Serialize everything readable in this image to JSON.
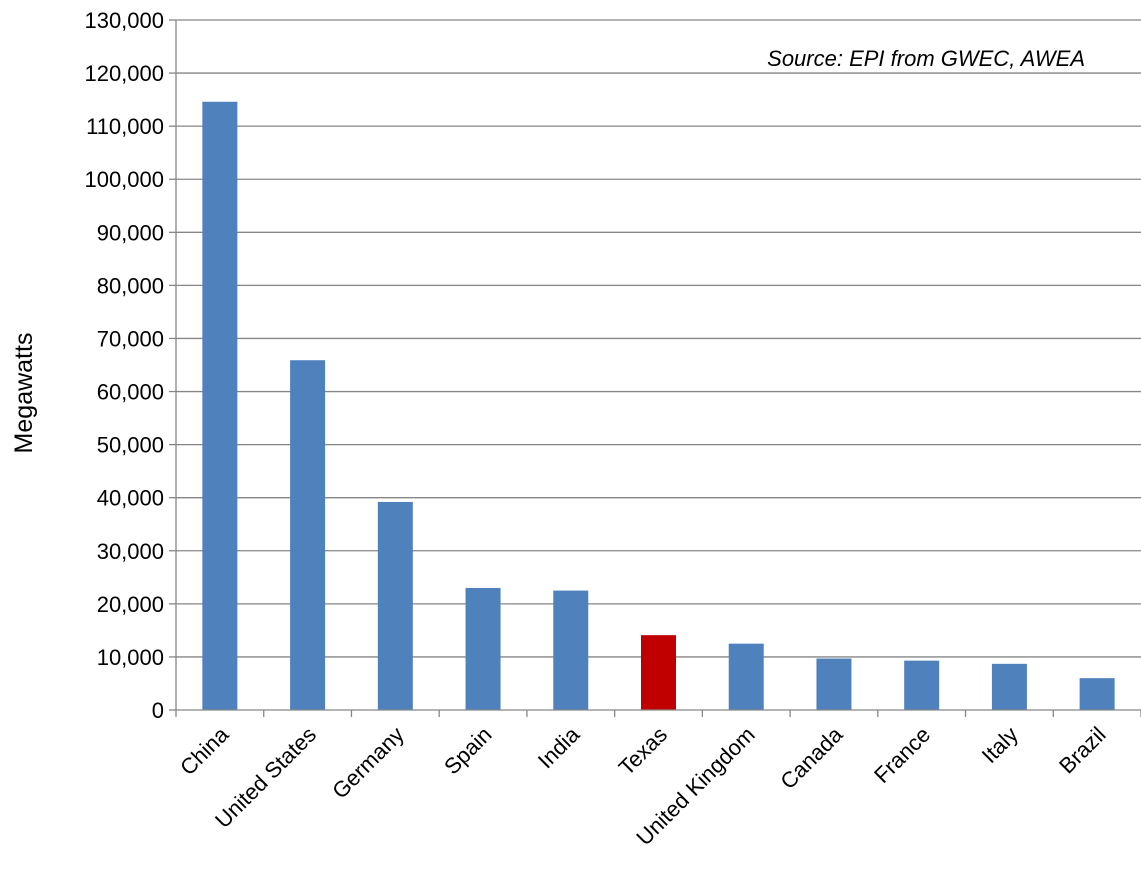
{
  "chart_data": {
    "type": "bar",
    "title": "",
    "xlabel": "",
    "ylabel": "Megawatts",
    "annotation": "Source: EPI from GWEC, AWEA",
    "categories": [
      "China",
      "United States",
      "Germany",
      "Spain",
      "India",
      "Texas",
      "United Kingdom",
      "Canada",
      "France",
      "Italy",
      "Brazil"
    ],
    "values": [
      114600,
      65900,
      39200,
      23000,
      22500,
      14100,
      12500,
      9700,
      9300,
      8700,
      6000
    ],
    "highlight_category": "Texas",
    "ylim": [
      0,
      130000
    ],
    "yticks": [
      0,
      10000,
      20000,
      30000,
      40000,
      50000,
      60000,
      70000,
      80000,
      90000,
      100000,
      110000,
      120000,
      130000
    ],
    "ytick_labels": [
      "0",
      "10,000",
      "20,000",
      "30,000",
      "40,000",
      "50,000",
      "60,000",
      "70,000",
      "80,000",
      "90,000",
      "100,000",
      "110,000",
      "120,000",
      "130,000"
    ],
    "grid": true,
    "legend": "none",
    "colors": {
      "bar": "#4F81BD",
      "highlight": "#C00000",
      "grid": "#868686",
      "axis": "#868686"
    }
  }
}
